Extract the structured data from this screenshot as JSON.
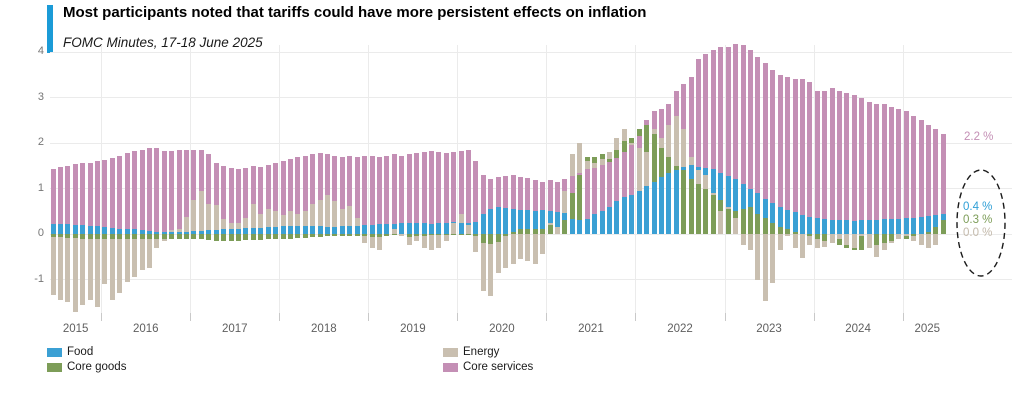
{
  "header": {
    "title": "Most participants noted that tariffs could have more persistent effects on inflation",
    "subtitle": "FOMC Minutes, 17-18 June 2025",
    "accent_color": "#1b9bd7"
  },
  "end_labels": [
    {
      "text": "2.2 %",
      "color": "#c48fb5",
      "series": "Core services"
    },
    {
      "text": "0.4 %",
      "color": "#2f9fd6",
      "series": "Food"
    },
    {
      "text": "0.3 %",
      "color": "#7d9d58",
      "series": "Core goods"
    },
    {
      "text": "0.0 %",
      "color": "#c3b9aa",
      "series": "Energy"
    }
  ],
  "legend": {
    "items": [
      {
        "label": "Food",
        "color": "#3ba0d4"
      },
      {
        "label": "Core goods",
        "color": "#7d9d58"
      },
      {
        "label": "Energy",
        "color": "#c9bfb0"
      },
      {
        "label": "Core services",
        "color": "#c48fb5"
      }
    ]
  },
  "annotation": {
    "type": "dashed-ellipse",
    "color": "#1a1a1a"
  },
  "chart_data": {
    "type": "bar",
    "subtype": "overlaid-from-zero",
    "x_start": "2015-06",
    "x_end": "2025-06",
    "frequency": "monthly",
    "title": "Most participants noted that tariffs could have more persistent effects on inflation",
    "subtitle": "FOMC Minutes, 17-18 June 2025",
    "ylabel": "",
    "ylim": [
      -1.9,
      4.2
    ],
    "y_ticks": [
      4,
      3,
      2,
      1,
      0,
      -1
    ],
    "year_labels": [
      "2015",
      "2016",
      "2017",
      "2018",
      "2019",
      "2020",
      "2021",
      "2022",
      "2023",
      "2024",
      "2025"
    ],
    "grid": true,
    "legend_position": "bottom",
    "series": [
      {
        "name": "Food",
        "color": "#3ba0d4",
        "values": [
          0.22,
          0.22,
          0.21,
          0.2,
          0.19,
          0.18,
          0.17,
          0.16,
          0.14,
          0.12,
          0.11,
          0.1,
          0.08,
          0.06,
          0.05,
          0.05,
          0.05,
          0.05,
          0.05,
          0.06,
          0.07,
          0.08,
          0.09,
          0.1,
          0.11,
          0.12,
          0.13,
          0.14,
          0.14,
          0.15,
          0.16,
          0.17,
          0.17,
          0.17,
          0.18,
          0.17,
          0.17,
          0.16,
          0.16,
          0.17,
          0.17,
          0.18,
          0.19,
          0.2,
          0.21,
          0.22,
          0.23,
          0.24,
          0.25,
          0.25,
          0.24,
          0.23,
          0.24,
          0.25,
          0.26,
          0.25,
          0.25,
          0.26,
          0.45,
          0.55,
          0.6,
          0.58,
          0.55,
          0.52,
          0.52,
          0.5,
          0.52,
          0.5,
          0.48,
          0.47,
          0.32,
          0.3,
          0.32,
          0.45,
          0.5,
          0.6,
          0.72,
          0.82,
          0.86,
          0.95,
          1.05,
          1.15,
          1.25,
          1.35,
          1.4,
          1.48,
          1.52,
          1.48,
          1.45,
          1.42,
          1.35,
          1.28,
          1.2,
          1.1,
          1.0,
          0.9,
          0.78,
          0.68,
          0.6,
          0.52,
          0.48,
          0.42,
          0.38,
          0.35,
          0.32,
          0.3,
          0.3,
          0.3,
          0.29,
          0.3,
          0.3,
          0.31,
          0.32,
          0.33,
          0.34,
          0.35,
          0.36,
          0.37,
          0.4,
          0.42,
          0.44
        ]
      },
      {
        "name": "Core goods",
        "color": "#7d9d58",
        "values": [
          -0.06,
          -0.06,
          -0.08,
          -0.08,
          -0.1,
          -0.1,
          -0.1,
          -0.1,
          -0.1,
          -0.12,
          -0.12,
          -0.12,
          -0.12,
          -0.12,
          -0.1,
          -0.1,
          -0.1,
          -0.12,
          -0.12,
          -0.12,
          -0.12,
          -0.14,
          -0.15,
          -0.15,
          -0.15,
          -0.15,
          -0.14,
          -0.14,
          -0.13,
          -0.12,
          -0.12,
          -0.12,
          -0.1,
          -0.08,
          -0.08,
          -0.06,
          -0.06,
          -0.05,
          -0.04,
          -0.04,
          -0.04,
          -0.05,
          -0.05,
          -0.06,
          -0.06,
          -0.04,
          -0.03,
          -0.05,
          -0.06,
          -0.05,
          -0.04,
          -0.03,
          -0.02,
          -0.02,
          -0.02,
          -0.02,
          -0.03,
          -0.05,
          -0.2,
          -0.22,
          -0.18,
          -0.05,
          0.05,
          0.1,
          0.12,
          0.1,
          0.12,
          0.2,
          0.15,
          0.3,
          0.9,
          1.3,
          1.7,
          1.7,
          1.75,
          1.65,
          1.85,
          2.05,
          2.1,
          2.3,
          2.4,
          2.2,
          1.9,
          1.7,
          1.5,
          1.4,
          1.2,
          1.1,
          1.0,
          0.85,
          0.75,
          0.55,
          0.5,
          0.55,
          0.6,
          0.45,
          0.35,
          0.25,
          0.15,
          0.1,
          0.05,
          0.0,
          -0.05,
          -0.1,
          -0.15,
          -0.2,
          -0.25,
          -0.3,
          -0.35,
          -0.35,
          -0.3,
          -0.25,
          -0.2,
          -0.15,
          -0.1,
          -0.1,
          -0.05,
          0.0,
          0.05,
          0.15,
          0.3
        ]
      },
      {
        "name": "Energy",
        "color": "#c9bfb0",
        "values": [
          -1.35,
          -1.45,
          -1.5,
          -1.72,
          -1.55,
          -1.45,
          -1.6,
          -1.1,
          -1.45,
          -1.3,
          -1.05,
          -0.95,
          -0.8,
          -0.75,
          -0.3,
          -0.15,
          0.08,
          0.1,
          0.38,
          0.75,
          0.95,
          0.67,
          0.63,
          0.34,
          0.25,
          0.25,
          0.35,
          0.67,
          0.45,
          0.55,
          0.5,
          0.42,
          0.5,
          0.45,
          0.5,
          0.65,
          0.75,
          0.85,
          0.72,
          0.55,
          0.62,
          0.35,
          -0.2,
          -0.3,
          -0.35,
          -0.05,
          0.12,
          -0.05,
          -0.25,
          -0.15,
          -0.3,
          -0.35,
          -0.3,
          -0.15,
          0.25,
          0.45,
          0.2,
          -0.4,
          -1.25,
          -1.37,
          -0.85,
          -0.75,
          -0.65,
          -0.55,
          -0.6,
          -0.65,
          -0.45,
          0.25,
          0.15,
          0.95,
          1.75,
          2.0,
          1.6,
          1.55,
          1.65,
          1.8,
          2.1,
          2.3,
          2.0,
          1.9,
          1.8,
          2.3,
          2.1,
          2.4,
          2.6,
          2.3,
          1.7,
          1.4,
          1.3,
          0.9,
          0.5,
          0.6,
          0.35,
          -0.25,
          -0.35,
          -1.0,
          -1.47,
          -1.07,
          -0.35,
          -0.05,
          -0.3,
          -0.52,
          -0.25,
          -0.3,
          -0.28,
          -0.2,
          -0.1,
          -0.25,
          -0.3,
          -0.05,
          -0.3,
          -0.5,
          -0.35,
          -0.2,
          -0.1,
          -0.05,
          -0.15,
          -0.25,
          -0.3,
          -0.25,
          0.0
        ]
      },
      {
        "name": "Core services",
        "color": "#c48fb5",
        "values": [
          1.42,
          1.47,
          1.49,
          1.53,
          1.55,
          1.57,
          1.6,
          1.63,
          1.68,
          1.72,
          1.78,
          1.82,
          1.85,
          1.9,
          1.88,
          1.82,
          1.82,
          1.85,
          1.85,
          1.85,
          1.85,
          1.75,
          1.55,
          1.5,
          1.45,
          1.42,
          1.45,
          1.5,
          1.48,
          1.52,
          1.55,
          1.6,
          1.65,
          1.7,
          1.72,
          1.75,
          1.78,
          1.75,
          1.72,
          1.7,
          1.72,
          1.7,
          1.72,
          1.72,
          1.7,
          1.72,
          1.75,
          1.72,
          1.75,
          1.78,
          1.8,
          1.82,
          1.8,
          1.78,
          1.8,
          1.82,
          1.85,
          1.6,
          1.3,
          1.2,
          1.25,
          1.28,
          1.3,
          1.25,
          1.22,
          1.18,
          1.15,
          1.18,
          1.15,
          1.2,
          1.28,
          1.35,
          1.42,
          1.45,
          1.52,
          1.58,
          1.68,
          1.8,
          1.95,
          2.15,
          2.5,
          2.7,
          2.75,
          2.85,
          3.15,
          3.3,
          3.45,
          3.85,
          3.95,
          4.05,
          4.1,
          4.12,
          4.18,
          4.15,
          4.05,
          3.9,
          3.75,
          3.6,
          3.5,
          3.45,
          3.4,
          3.4,
          3.35,
          3.15,
          3.15,
          3.2,
          3.15,
          3.1,
          3.05,
          3.0,
          2.9,
          2.85,
          2.85,
          2.8,
          2.75,
          2.7,
          2.6,
          2.5,
          2.4,
          2.3,
          2.2
        ]
      }
    ]
  }
}
